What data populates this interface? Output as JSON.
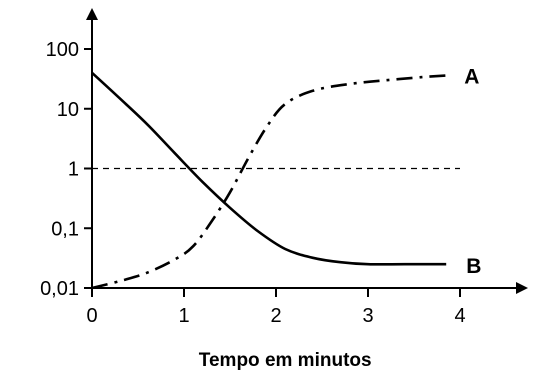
{
  "chart_data": {
    "type": "line",
    "title": "",
    "xlabel": "Tempo em minutos",
    "ylabel": "",
    "xlim": [
      0,
      4.6
    ],
    "ylim": [
      0.01,
      100
    ],
    "y_scale": "log",
    "grid": false,
    "x_ticks": [
      {
        "value": 0,
        "label": "0"
      },
      {
        "value": 1,
        "label": "1"
      },
      {
        "value": 2,
        "label": "2"
      },
      {
        "value": 3,
        "label": "3"
      },
      {
        "value": 4,
        "label": "4"
      }
    ],
    "y_ticks": [
      {
        "value": 0.01,
        "label": "0,01"
      },
      {
        "value": 0.1,
        "label": "0,1"
      },
      {
        "value": 1,
        "label": "1"
      },
      {
        "value": 10,
        "label": "10"
      },
      {
        "value": 100,
        "label": "100"
      }
    ],
    "reference_line": {
      "y": 1,
      "x_end": 4.0,
      "style": "dashed"
    },
    "series": [
      {
        "name": "A",
        "style": "dash-dot",
        "color": "#000000",
        "x": [
          0,
          0.3,
          0.6,
          0.9,
          1.1,
          1.3,
          1.5,
          1.7,
          1.9,
          2.1,
          2.4,
          2.8,
          3.2,
          3.6,
          3.85
        ],
        "y": [
          0.01,
          0.013,
          0.018,
          0.03,
          0.05,
          0.13,
          0.4,
          1.5,
          5,
          12,
          20,
          26,
          30,
          34,
          36
        ]
      },
      {
        "name": "B",
        "style": "solid",
        "color": "#000000",
        "x": [
          0,
          0.3,
          0.6,
          0.9,
          1.2,
          1.5,
          1.8,
          2.1,
          2.4,
          2.7,
          3.0,
          3.4,
          3.85
        ],
        "y": [
          40,
          15,
          5.5,
          1.8,
          0.6,
          0.22,
          0.09,
          0.045,
          0.032,
          0.027,
          0.025,
          0.025,
          0.025
        ]
      }
    ]
  }
}
